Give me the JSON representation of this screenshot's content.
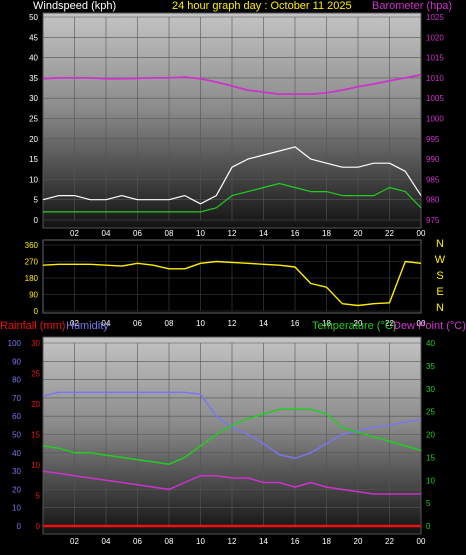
{
  "header": {
    "left": "Windspeed (kph)",
    "center": "24 hour graph day : October 11 2025",
    "right": "Barometer (hpa)"
  },
  "direction_letters": [
    "N",
    "W",
    "S",
    "E",
    "N"
  ],
  "bottom_header": {
    "rainfall": "Rainfall (mm)",
    "humidity": "Humidity",
    "temperature": "Temperature (°C)",
    "dewpoint": "Dew Point (°C)"
  },
  "colors": {
    "wind_gust": "#ffffff",
    "wind_avg": "#22cc22",
    "barometer": "#cc33cc",
    "direction": "#ffee00",
    "humidity": "#7777ee",
    "temperature": "#22cc22",
    "dewpoint": "#cc33cc",
    "rainfall": "#ee1111"
  },
  "chart_data": [
    {
      "type": "line",
      "name": "wind-barometer",
      "x_ticks": [
        "02",
        "04",
        "06",
        "08",
        "10",
        "12",
        "14",
        "16",
        "18",
        "20",
        "22",
        "00"
      ],
      "y_left_ticks": [
        0,
        5,
        10,
        15,
        20,
        25,
        30,
        35,
        40,
        45,
        50
      ],
      "y_left_range": [
        0,
        50
      ],
      "y_right_ticks": [
        975,
        980,
        985,
        990,
        995,
        1000,
        1005,
        1010,
        1015,
        1020,
        1025
      ],
      "y_right_range": [
        975,
        1025
      ],
      "grid": true,
      "x_hours": [
        0,
        1,
        2,
        3,
        4,
        5,
        6,
        7,
        8,
        9,
        10,
        11,
        12,
        13,
        14,
        15,
        16,
        17,
        18,
        19,
        20,
        21,
        22,
        23,
        24
      ],
      "series": [
        {
          "key": "wind_gust",
          "axis": "left",
          "values": [
            5,
            6,
            6,
            5,
            5,
            6,
            5,
            5,
            5,
            6,
            4,
            6,
            13,
            15,
            16,
            17,
            18,
            15,
            14,
            13,
            13,
            14,
            14,
            12,
            6
          ]
        },
        {
          "key": "wind_avg",
          "axis": "left",
          "values": [
            2,
            2,
            2,
            2,
            2,
            2,
            2,
            2,
            2,
            2,
            2,
            3,
            6,
            7,
            8,
            9,
            8,
            7,
            7,
            6,
            6,
            6,
            8,
            7,
            3
          ]
        },
        {
          "key": "barometer",
          "axis": "right",
          "values": [
            1009.8,
            1010,
            1010,
            1010,
            1009.8,
            1009.8,
            1009.9,
            1010,
            1010,
            1010.2,
            1009.8,
            1009,
            1008,
            1007,
            1006.5,
            1006,
            1006,
            1006,
            1006.3,
            1007,
            1007.8,
            1008.5,
            1009.3,
            1010,
            1010.8
          ]
        }
      ]
    },
    {
      "type": "line",
      "name": "wind-direction",
      "x_ticks": [
        "02",
        "04",
        "06",
        "08",
        "10",
        "12",
        "14",
        "16",
        "18",
        "20",
        "22",
        "00"
      ],
      "y_ticks": [
        0,
        90,
        180,
        270,
        360
      ],
      "y_range": [
        0,
        360
      ],
      "grid": true,
      "x_hours": [
        0,
        1,
        2,
        3,
        4,
        5,
        6,
        7,
        8,
        9,
        10,
        11,
        12,
        13,
        14,
        15,
        16,
        17,
        18,
        19,
        20,
        21,
        22,
        23,
        24
      ],
      "series": [
        {
          "key": "direction",
          "values": [
            250,
            255,
            255,
            255,
            250,
            245,
            260,
            250,
            230,
            230,
            260,
            270,
            265,
            260,
            255,
            250,
            240,
            150,
            130,
            40,
            30,
            40,
            45,
            270,
            260
          ]
        }
      ]
    },
    {
      "type": "line",
      "name": "temp-humidity-rain",
      "x_ticks": [
        "02",
        "04",
        "06",
        "08",
        "10",
        "12",
        "14",
        "16",
        "18",
        "20",
        "22",
        "00"
      ],
      "y_rain_ticks": [
        0,
        5,
        10,
        15,
        20,
        25,
        30
      ],
      "y_rain_range": [
        0,
        30
      ],
      "y_humidity_ticks": [
        0,
        10,
        20,
        30,
        40,
        50,
        60,
        70,
        80,
        90,
        100
      ],
      "y_humidity_range": [
        0,
        100
      ],
      "y_temp_ticks": [
        0,
        5,
        10,
        15,
        20,
        25,
        30,
        35,
        40
      ],
      "y_temp_range": [
        0,
        40
      ],
      "grid": true,
      "x_hours": [
        0,
        1,
        2,
        3,
        4,
        5,
        6,
        7,
        8,
        9,
        10,
        11,
        12,
        13,
        14,
        15,
        16,
        17,
        18,
        19,
        20,
        21,
        22,
        23,
        24
      ],
      "series": [
        {
          "key": "humidity",
          "axis": "humidity",
          "values": [
            71,
            73,
            73,
            73,
            73,
            73,
            73,
            73,
            73,
            73,
            72,
            60,
            54,
            50,
            45,
            39,
            37,
            40,
            45,
            50,
            52,
            54,
            55,
            57,
            58
          ]
        },
        {
          "key": "temperature",
          "axis": "temp",
          "values": [
            17.5,
            17,
            16,
            16,
            15.5,
            15,
            14.5,
            14,
            13.5,
            15,
            17.5,
            20,
            22,
            23.5,
            24.5,
            25.5,
            25.5,
            25.5,
            24.5,
            21.5,
            20.5,
            19.5,
            18.5,
            17.5,
            16.5
          ]
        },
        {
          "key": "dewpoint",
          "axis": "temp",
          "values": [
            12,
            11.5,
            11,
            10.5,
            10,
            9.5,
            9,
            8.5,
            8,
            9.5,
            11,
            11,
            10.5,
            10.5,
            9.5,
            9.5,
            8.5,
            9.5,
            8.5,
            8,
            7.5,
            7,
            7,
            7,
            7
          ]
        },
        {
          "key": "rainfall",
          "axis": "rain",
          "values": [
            0,
            0,
            0,
            0,
            0,
            0,
            0,
            0,
            0,
            0,
            0,
            0,
            0,
            0,
            0,
            0,
            0,
            0,
            0,
            0,
            0,
            0,
            0,
            0,
            0
          ]
        }
      ]
    }
  ]
}
